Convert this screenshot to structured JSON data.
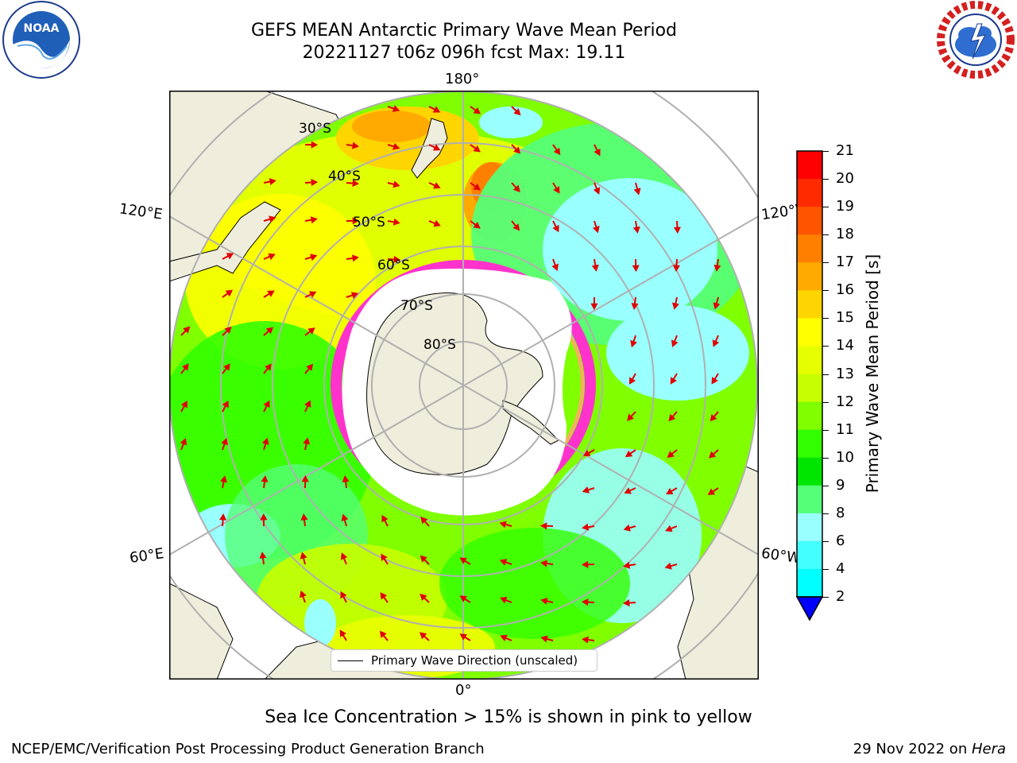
{
  "header": {
    "title_line1": "GEFS MEAN Antarctic Primary Wave Mean Period",
    "title_line2": "20221127 t06z 096h fcst   Max: 19.11"
  },
  "logos": {
    "left": "NOAA",
    "left_ring_text": "NATIONAL OCEANIC AND ATMOSPHERIC ADMINISTRATION · U.S. DEPARTMENT OF COMMERCE",
    "right_ring_text": "NATIONAL WEATHER SERVICE"
  },
  "map": {
    "longitude_labels": {
      "top": "180°",
      "bottom": "0°",
      "upper_left": "120°E",
      "lower_left": "60°E",
      "upper_right": "120°W",
      "lower_right": "60°W"
    },
    "latitude_labels": [
      "30°S",
      "40°S",
      "50°S",
      "60°S",
      "70°S",
      "80°S"
    ],
    "legend_label": "Primary Wave Direction (unscaled)"
  },
  "colorbar": {
    "label": "Primary Wave Mean Period [s]",
    "ticks": [
      "21",
      "20",
      "19",
      "18",
      "17",
      "16",
      "15",
      "14",
      "13",
      "12",
      "11",
      "10",
      "9",
      "8",
      "6",
      "4",
      "2"
    ],
    "colors": [
      "#ff0000",
      "#ff2a00",
      "#ff5500",
      "#ff8000",
      "#ffaa00",
      "#ffd500",
      "#ffff00",
      "#e6ff00",
      "#c8ff00",
      "#7fff00",
      "#33ff00",
      "#00e600",
      "#55ff77",
      "#99ffff",
      "#44ffff",
      "#00ffff",
      "#0080ff",
      "#0000ff"
    ]
  },
  "notes": {
    "sea_ice": "Sea Ice Concentration > 15% is shown in pink to yellow"
  },
  "footer": {
    "left": "NCEP/EMC/Verification Post Processing Product Generation Branch",
    "right_prefix": "29 Nov 2022 on ",
    "right_italic": "Hera"
  }
}
